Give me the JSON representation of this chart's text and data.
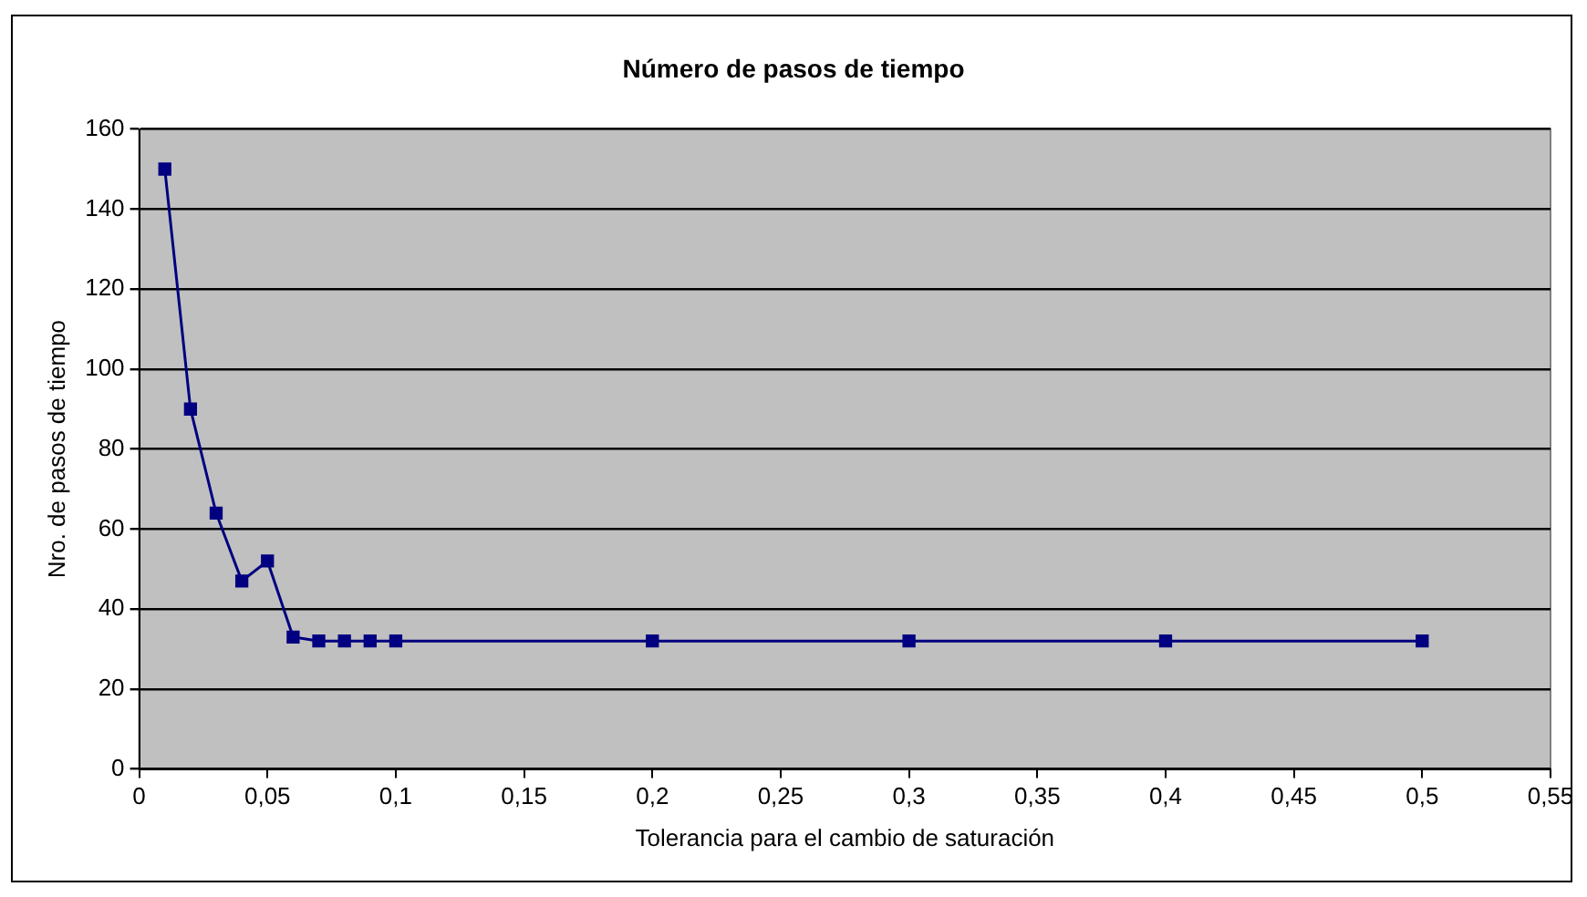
{
  "chart_data": {
    "type": "line",
    "title": "Número de pasos de tiempo",
    "xlabel": "Tolerancia para el cambio de saturación",
    "ylabel": "Nro. de pasos de tiempo",
    "x": [
      0.01,
      0.02,
      0.03,
      0.04,
      0.05,
      0.06,
      0.07,
      0.08,
      0.09,
      0.1,
      0.2,
      0.3,
      0.4,
      0.5
    ],
    "series": [
      {
        "color": "#000080",
        "values": [
          150,
          90,
          64,
          47,
          52,
          33,
          32,
          32,
          32,
          32,
          32,
          32,
          32,
          32
        ]
      }
    ],
    "xlim": [
      0,
      0.55
    ],
    "xticks": [
      {
        "value": 0,
        "label": "0"
      },
      {
        "value": 0.05,
        "label": "0,05"
      },
      {
        "value": 0.1,
        "label": "0,1"
      },
      {
        "value": 0.15,
        "label": "0,15"
      },
      {
        "value": 0.2,
        "label": "0,2"
      },
      {
        "value": 0.25,
        "label": "0,25"
      },
      {
        "value": 0.3,
        "label": "0,3"
      },
      {
        "value": 0.35,
        "label": "0,35"
      },
      {
        "value": 0.4,
        "label": "0,4"
      },
      {
        "value": 0.45,
        "label": "0,45"
      },
      {
        "value": 0.5,
        "label": "0,5"
      },
      {
        "value": 0.55,
        "label": "0,55"
      }
    ],
    "ylim": [
      0,
      160
    ],
    "yticks": [
      0,
      20,
      40,
      60,
      80,
      100,
      120,
      140,
      160
    ],
    "grid": "y",
    "legend": false,
    "marker": "square",
    "line_style": "solid"
  }
}
